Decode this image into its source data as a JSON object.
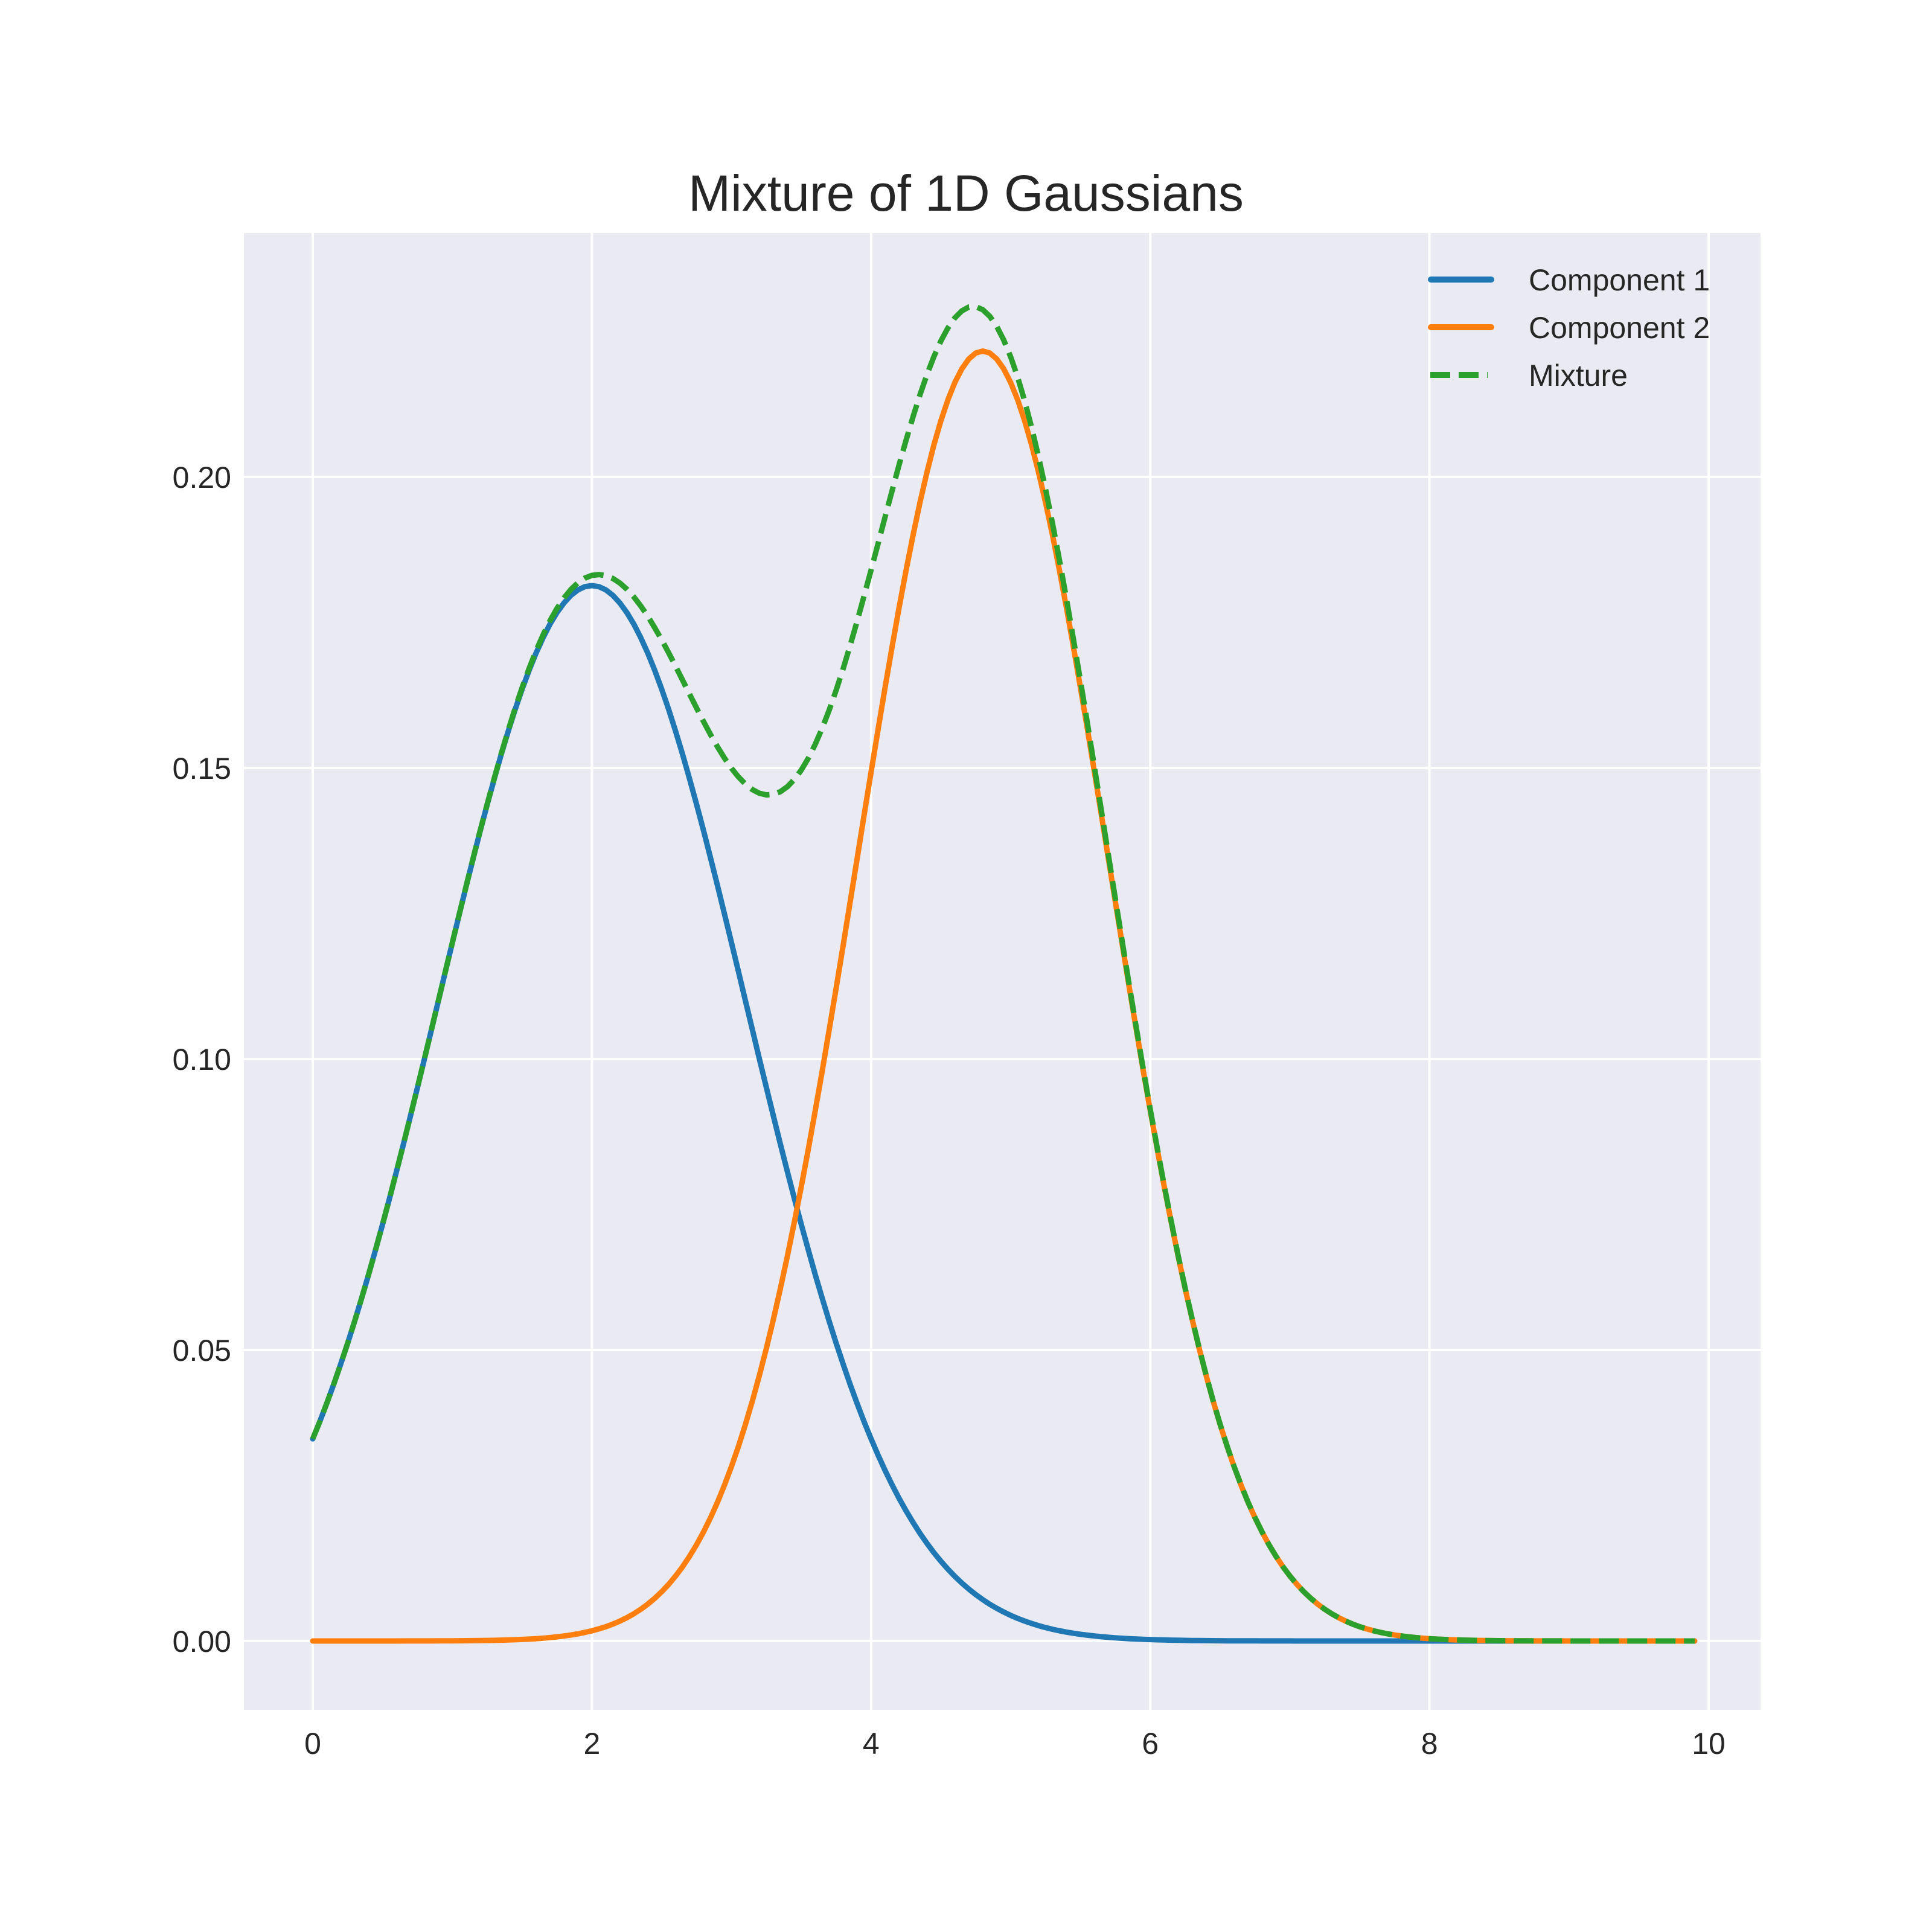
{
  "chart_data": {
    "type": "line",
    "title": "Mixture of 1D Gaussians",
    "xlabel": "",
    "ylabel": "",
    "xlim": [
      -0.495,
      10.395
    ],
    "ylim": [
      -0.0115,
      0.2418
    ],
    "grid": true,
    "legend_position": "upper right",
    "x_ticks": [
      "0",
      "2",
      "4",
      "6",
      "8",
      "10"
    ],
    "x_tick_values": [
      0,
      2,
      4,
      6,
      8,
      10
    ],
    "y_ticks": [
      "0.00",
      "0.05",
      "0.10",
      "0.15",
      "0.20"
    ],
    "y_tick_values": [
      0,
      0.05,
      0.1,
      0.15,
      0.2
    ],
    "x": [
      0.0,
      0.2,
      0.4,
      0.6,
      0.8,
      1.0,
      1.2,
      1.4,
      1.6,
      1.8,
      2.0,
      2.2,
      2.4,
      2.6,
      2.8,
      3.0,
      3.2,
      3.4,
      3.6,
      3.8,
      4.0,
      4.2,
      4.4,
      4.6,
      4.8,
      5.0,
      5.2,
      5.4,
      5.6,
      5.8,
      6.0,
      6.2,
      6.4,
      6.6,
      6.8,
      7.0,
      7.2,
      7.4,
      7.6,
      7.8,
      8.0,
      8.5,
      9.0,
      9.5,
      9.9
    ],
    "series": [
      {
        "name": "Component 1",
        "color": "#1f77b4",
        "style": "solid",
        "params": {
          "weight": 0.5,
          "mean": 2.0,
          "std": 1.1
        },
        "values": [
          0.0347,
          0.0476,
          0.0635,
          0.0823,
          0.1033,
          0.1253,
          0.1468,
          0.1661,
          0.1811,
          0.1907,
          0.1814,
          0.1795,
          0.1725,
          0.1609,
          0.1456,
          0.1278,
          0.1087,
          0.0898,
          0.072,
          0.056,
          0.0423,
          0.031,
          0.0221,
          0.0153,
          0.0103,
          0.0067,
          0.0042,
          0.0026,
          0.0015,
          0.0009,
          0.0005,
          0.0003,
          0.0001,
          0.0001,
          0.0,
          0.0,
          0.0,
          0.0,
          0.0,
          0.0,
          0.0,
          0.0,
          0.0,
          0.0,
          0.0
        ]
      },
      {
        "name": "Component 2",
        "color": "#ff7f0e",
        "style": "solid",
        "params": {
          "weight": 0.5,
          "mean": 4.8,
          "std": 0.9
        },
        "values": [
          0.0,
          0.0,
          0.0,
          0.0,
          0.0,
          0.0,
          0.0001,
          0.0002,
          0.0004,
          0.0009,
          0.0022,
          0.0043,
          0.0079,
          0.0139,
          0.0229,
          0.0355,
          0.0518,
          0.0713,
          0.0927,
          0.1139,
          0.1327,
          0.1548,
          0.1676,
          0.2063,
          0.2216,
          0.2165,
          0.2003,
          0.1775,
          0.1495,
          0.1196,
          0.0913,
          0.0662,
          0.0456,
          0.0299,
          0.0186,
          0.0111,
          0.0062,
          0.0033,
          0.0017,
          0.0008,
          0.0004,
          0.0,
          0.0,
          0.0,
          0.0
        ]
      },
      {
        "name": "Mixture",
        "color": "#2ca02c",
        "style": "dashed",
        "values": [
          0.0347,
          0.0476,
          0.0635,
          0.0823,
          0.1033,
          0.1253,
          0.1469,
          0.1663,
          0.1815,
          0.1916,
          0.1836,
          0.1838,
          0.1804,
          0.1748,
          0.1685,
          0.1633,
          0.1605,
          0.1611,
          0.1647,
          0.1699,
          0.175,
          0.1858,
          0.1897,
          0.2216,
          0.2319,
          0.2232,
          0.2045,
          0.1801,
          0.151,
          0.1205,
          0.0918,
          0.0665,
          0.0457,
          0.03,
          0.0186,
          0.0111,
          0.0062,
          0.0033,
          0.0017,
          0.0008,
          0.0004,
          0.0,
          0.0,
          0.0,
          0.0
        ]
      }
    ]
  },
  "legend": {
    "items": [
      {
        "label": "Component 1",
        "color": "#1f77b4",
        "style": "solid"
      },
      {
        "label": "Component 2",
        "color": "#ff7f0e",
        "style": "solid"
      },
      {
        "label": "Mixture",
        "color": "#2ca02c",
        "style": "dashed"
      }
    ]
  },
  "colors": {
    "plot_background": "#eaeaf2",
    "grid": "#ffffff",
    "text": "#262626"
  }
}
